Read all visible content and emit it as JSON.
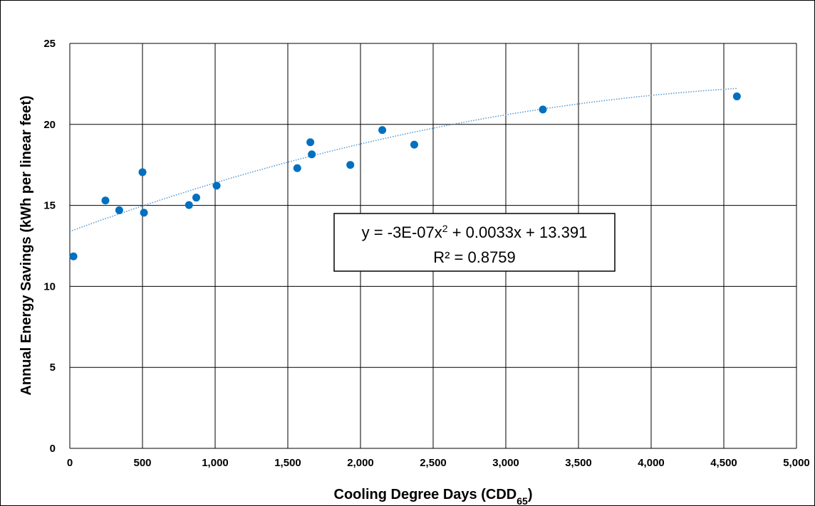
{
  "chart_data": {
    "type": "scatter",
    "title": "",
    "xlabel": "Cooling Degree Days (CDD",
    "xlabel_sub": "65",
    "xlabel_close": ")",
    "ylabel": "Annual Energy Savings (kWh per linear feet)",
    "xlim": [
      0,
      5000
    ],
    "ylim": [
      0,
      25
    ],
    "x_ticks": [
      0,
      500,
      1000,
      1500,
      2000,
      2500,
      3000,
      3500,
      4000,
      4500,
      5000
    ],
    "x_tick_labels": [
      "0",
      "500",
      "1,000",
      "1,500",
      "2,000",
      "2,500",
      "3,000",
      "3,500",
      "4,000",
      "4,500",
      "5,000"
    ],
    "y_ticks": [
      0,
      5,
      10,
      15,
      20,
      25
    ],
    "y_tick_labels": [
      "0",
      "5",
      "10",
      "15",
      "20",
      "25"
    ],
    "grid": true,
    "series": [
      {
        "color": "#0070C0",
        "points": [
          {
            "x": 25,
            "y": 11.85
          },
          {
            "x": 245,
            "y": 15.3
          },
          {
            "x": 340,
            "y": 14.7
          },
          {
            "x": 500,
            "y": 17.05
          },
          {
            "x": 510,
            "y": 14.55
          },
          {
            "x": 820,
            "y": 15.02
          },
          {
            "x": 870,
            "y": 15.48
          },
          {
            "x": 1010,
            "y": 16.22
          },
          {
            "x": 1565,
            "y": 17.3
          },
          {
            "x": 1655,
            "y": 18.9
          },
          {
            "x": 1665,
            "y": 18.15
          },
          {
            "x": 1930,
            "y": 17.5
          },
          {
            "x": 2150,
            "y": 19.65
          },
          {
            "x": 2370,
            "y": 18.75
          },
          {
            "x": 3255,
            "y": 20.92
          },
          {
            "x": 4590,
            "y": 21.73
          }
        ]
      }
    ],
    "trendline": {
      "type": "polynomial-2",
      "coefficients": {
        "a": -3e-07,
        "b": 0.0033,
        "c": 13.391
      },
      "x_range": [
        0,
        4590
      ],
      "color": "#5B9BD5",
      "style": "dotted"
    },
    "annotation": {
      "line1_prefix": "y = -3E-07x",
      "line1_sup": "2",
      "line1_suffix": " + 0.0033x + 13.391",
      "line2": "R² = 0.8759"
    }
  }
}
